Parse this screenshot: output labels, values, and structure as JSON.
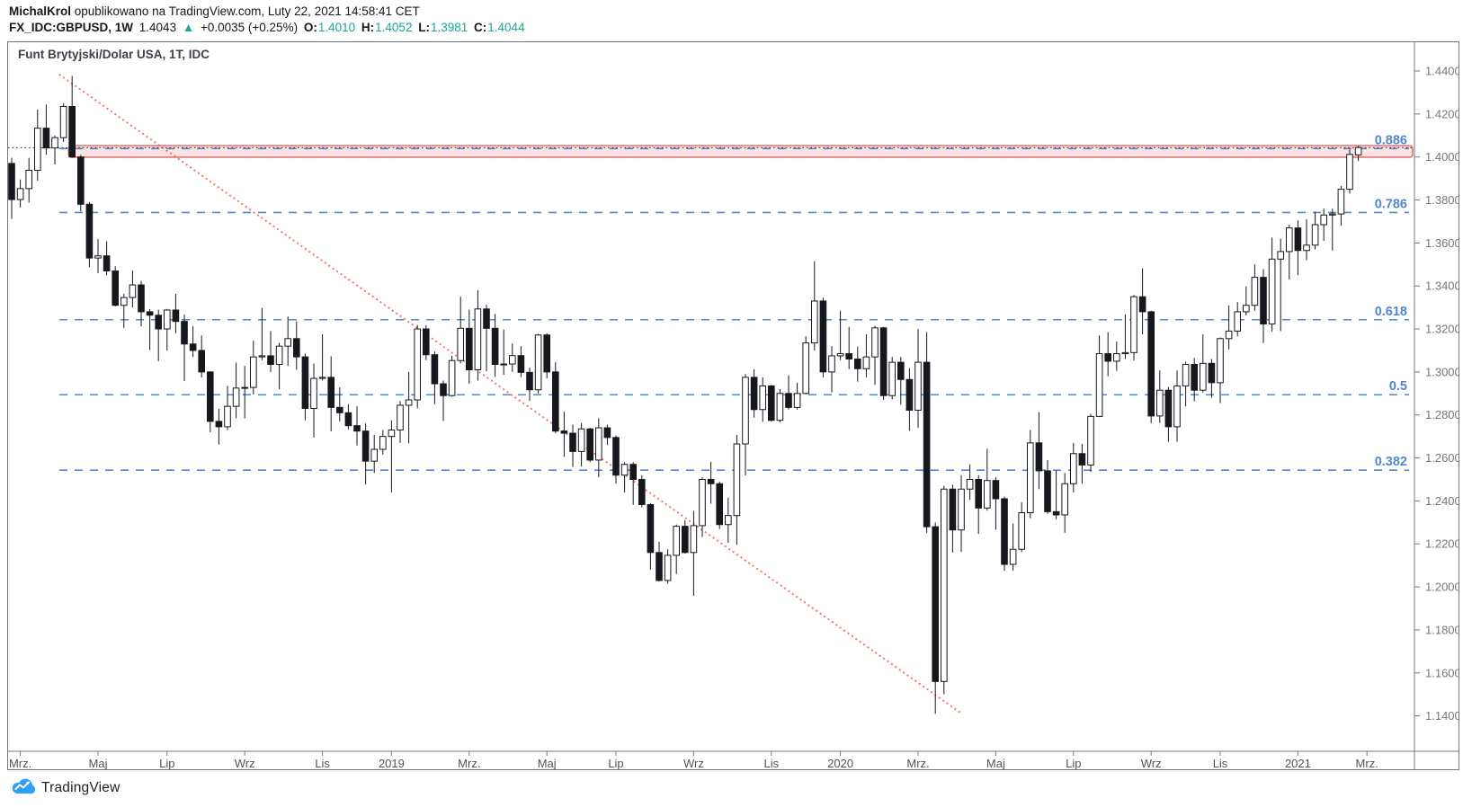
{
  "header": {
    "author": "MichalKrol",
    "published": " opublikowano na TradingView.com, Luty 22, 2021 14:58:41 CET",
    "symbol": "FX_IDC:GBPUSD, 1W",
    "last_price": "1.4043",
    "arrow": "▲",
    "change": "+0.0035 (+0.25%)",
    "ohlc": {
      "o_label": "O:",
      "o": "1.4010",
      "h_label": "H:",
      "h": "1.4052",
      "l_label": "L:",
      "l": "1.3981",
      "c_label": "C:",
      "c": "1.4044"
    }
  },
  "chart": {
    "title": "Funt Brytyjski/Dolar USA, 1T, IDC"
  },
  "footer": {
    "brand": "TradingView"
  },
  "colors": {
    "accent_teal": "#1ba79b",
    "fib_blue": "#5187d2",
    "band_fill": "rgba(239,83,80,0.16)",
    "band_stroke": "#e57373",
    "trend_red": "#ef5350",
    "current_line": "#22262f",
    "candle_up_fill": "#ffffff",
    "candle_down_fill": "#16181d",
    "candle_stroke": "#16181d",
    "axis_line": "#75787b",
    "price_text": "#74777d",
    "time_text": "#50535a",
    "logo_blue": "#2f9ef5"
  },
  "chart_data": {
    "type": "candlestick",
    "symbol": "FX_IDC:GBPUSD",
    "timeframe": "1W",
    "title": "Funt Brytyjski/Dolar USA, 1T, IDC",
    "y_axis": {
      "top_price": 1.45338,
      "bottom_price": 1.12353
    },
    "y_ticks": [
      1.44,
      1.42,
      1.4,
      1.38,
      1.36,
      1.34,
      1.32,
      1.3,
      1.28,
      1.26,
      1.24,
      1.22,
      1.2,
      1.18,
      1.16,
      1.14
    ],
    "x_ticks": [
      {
        "label": "Mrz.",
        "index": 1
      },
      {
        "label": "Maj",
        "index": 10
      },
      {
        "label": "Lip",
        "index": 18
      },
      {
        "label": "Wrz",
        "index": 27
      },
      {
        "label": "Lis",
        "index": 36
      },
      {
        "label": "2019",
        "index": 44
      },
      {
        "label": "Mrz.",
        "index": 53
      },
      {
        "label": "Maj",
        "index": 62
      },
      {
        "label": "Lip",
        "index": 70
      },
      {
        "label": "Wrz",
        "index": 79
      },
      {
        "label": "Lis",
        "index": 88
      },
      {
        "label": "2020",
        "index": 96
      },
      {
        "label": "Mrz.",
        "index": 105
      },
      {
        "label": "Maj",
        "index": 114
      },
      {
        "label": "Lip",
        "index": 123
      },
      {
        "label": "Wrz",
        "index": 132
      },
      {
        "label": "Lis",
        "index": 140
      },
      {
        "label": "2021",
        "index": 149
      },
      {
        "label": "Mrz.",
        "index": 157
      }
    ],
    "fib_levels": [
      {
        "label": "0.886",
        "price": 1.4039
      },
      {
        "label": "0.786",
        "price": 1.3742
      },
      {
        "label": "0.618",
        "price": 1.3243
      },
      {
        "label": "0.5",
        "price": 1.2894
      },
      {
        "label": "0.382",
        "price": 1.2543
      }
    ],
    "resistance_band": {
      "top": 1.4053,
      "bottom": 1.3999,
      "start_index": 6.6
    },
    "trendline": {
      "from": {
        "index": 5.5,
        "price": 1.4384
      },
      "to": {
        "index": 110,
        "price": 1.1412
      }
    },
    "current_price": 1.4043,
    "candles": [
      [
        1.397,
        1.3996,
        1.3712,
        1.3802
      ],
      [
        1.3802,
        1.3895,
        1.3765,
        1.3853
      ],
      [
        1.3853,
        1.3996,
        1.3788,
        1.3938
      ],
      [
        1.3938,
        1.422,
        1.389,
        1.4134
      ],
      [
        1.4134,
        1.4244,
        1.401,
        1.4042
      ],
      [
        1.4042,
        1.41,
        1.3965,
        1.409
      ],
      [
        1.409,
        1.425,
        1.407,
        1.4235
      ],
      [
        1.4235,
        1.4377,
        1.3996,
        1.4
      ],
      [
        1.4,
        1.401,
        1.3747,
        1.378
      ],
      [
        1.378,
        1.379,
        1.3487,
        1.353
      ],
      [
        1.353,
        1.3618,
        1.346,
        1.354
      ],
      [
        1.354,
        1.3608,
        1.345,
        1.347
      ],
      [
        1.347,
        1.3492,
        1.3305,
        1.331
      ],
      [
        1.331,
        1.3363,
        1.3204,
        1.3346
      ],
      [
        1.3346,
        1.3472,
        1.33,
        1.3405
      ],
      [
        1.3405,
        1.3424,
        1.3212,
        1.328
      ],
      [
        1.328,
        1.3292,
        1.3102,
        1.3264
      ],
      [
        1.3264,
        1.329,
        1.305,
        1.32
      ],
      [
        1.32,
        1.3293,
        1.31,
        1.3288
      ],
      [
        1.3288,
        1.3363,
        1.318,
        1.3235
      ],
      [
        1.3235,
        1.3267,
        1.2957,
        1.313
      ],
      [
        1.313,
        1.3213,
        1.307,
        1.31
      ],
      [
        1.31,
        1.317,
        1.2975,
        1.3
      ],
      [
        1.3,
        1.3003,
        1.272,
        1.277
      ],
      [
        1.277,
        1.2828,
        1.2662,
        1.2745
      ],
      [
        1.2745,
        1.2935,
        1.273,
        1.284
      ],
      [
        1.284,
        1.3043,
        1.2785,
        1.2925
      ],
      [
        1.2925,
        1.3028,
        1.2784,
        1.2928
      ],
      [
        1.2928,
        1.3145,
        1.2895,
        1.307
      ],
      [
        1.307,
        1.3298,
        1.3055,
        1.3075
      ],
      [
        1.3075,
        1.319,
        1.3,
        1.3035
      ],
      [
        1.3035,
        1.3135,
        1.292,
        1.312
      ],
      [
        1.312,
        1.3258,
        1.3028,
        1.3155
      ],
      [
        1.3155,
        1.3235,
        1.301,
        1.307
      ],
      [
        1.307,
        1.3085,
        1.2775,
        1.283
      ],
      [
        1.283,
        1.3038,
        1.2695,
        1.297
      ],
      [
        1.297,
        1.3175,
        1.296,
        1.2975
      ],
      [
        1.2975,
        1.3073,
        1.2723,
        1.2835
      ],
      [
        1.2835,
        1.2928,
        1.277,
        1.281
      ],
      [
        1.281,
        1.285,
        1.2733,
        1.275
      ],
      [
        1.275,
        1.284,
        1.2658,
        1.2725
      ],
      [
        1.2725,
        1.276,
        1.2477,
        1.2585
      ],
      [
        1.2585,
        1.2707,
        1.253,
        1.264
      ],
      [
        1.264,
        1.273,
        1.2615,
        1.27
      ],
      [
        1.27,
        1.2775,
        1.244,
        1.273
      ],
      [
        1.273,
        1.2865,
        1.267,
        1.2845
      ],
      [
        1.2845,
        1.3,
        1.2668,
        1.287
      ],
      [
        1.287,
        1.3218,
        1.283,
        1.32
      ],
      [
        1.32,
        1.3217,
        1.3055,
        1.308
      ],
      [
        1.308,
        1.3095,
        1.285,
        1.2945
      ],
      [
        1.2945,
        1.296,
        1.2772,
        1.289
      ],
      [
        1.289,
        1.3075,
        1.2885,
        1.3053
      ],
      [
        1.3053,
        1.335,
        1.304,
        1.3203
      ],
      [
        1.3203,
        1.329,
        1.2945,
        1.301
      ],
      [
        1.301,
        1.338,
        1.296,
        1.3293
      ],
      [
        1.3293,
        1.3312,
        1.3003,
        1.3203
      ],
      [
        1.3203,
        1.327,
        1.2977,
        1.3035
      ],
      [
        1.3035,
        1.3197,
        1.2987,
        1.3037
      ],
      [
        1.3037,
        1.3132,
        1.3,
        1.3076
      ],
      [
        1.3076,
        1.312,
        1.2976,
        1.2998
      ],
      [
        1.2998,
        1.302,
        1.2866,
        1.2917
      ],
      [
        1.2917,
        1.3177,
        1.29,
        1.3172
      ],
      [
        1.3172,
        1.318,
        1.297,
        1.3
      ],
      [
        1.3,
        1.3045,
        1.2715,
        1.2725
      ],
      [
        1.2725,
        1.2815,
        1.2605,
        1.2715
      ],
      [
        1.2715,
        1.2755,
        1.2558,
        1.263
      ],
      [
        1.263,
        1.2763,
        1.256,
        1.2735
      ],
      [
        1.2735,
        1.274,
        1.258,
        1.259
      ],
      [
        1.259,
        1.2785,
        1.251,
        1.274
      ],
      [
        1.274,
        1.2755,
        1.266,
        1.2695
      ],
      [
        1.2695,
        1.2705,
        1.248,
        1.252
      ],
      [
        1.252,
        1.258,
        1.244,
        1.257
      ],
      [
        1.257,
        1.258,
        1.2382,
        1.25
      ],
      [
        1.25,
        1.252,
        1.237,
        1.2383
      ],
      [
        1.2383,
        1.239,
        1.208,
        1.216
      ],
      [
        1.216,
        1.221,
        1.2025,
        1.203
      ],
      [
        1.203,
        1.2175,
        1.2015,
        1.2147
      ],
      [
        1.2147,
        1.229,
        1.206,
        1.2282
      ],
      [
        1.2282,
        1.231,
        1.2155,
        1.216
      ],
      [
        1.216,
        1.2354,
        1.1958,
        1.2285
      ],
      [
        1.2285,
        1.251,
        1.2232,
        1.25
      ],
      [
        1.25,
        1.2582,
        1.2387,
        1.248
      ],
      [
        1.248,
        1.249,
        1.227,
        1.229
      ],
      [
        1.229,
        1.2415,
        1.2205,
        1.2332
      ],
      [
        1.2332,
        1.2707,
        1.2196,
        1.2665
      ],
      [
        1.2665,
        1.299,
        1.2518,
        1.2975
      ],
      [
        1.2975,
        1.3012,
        1.2788,
        1.2825
      ],
      [
        1.2825,
        1.2975,
        1.2768,
        1.2935
      ],
      [
        1.2935,
        1.294,
        1.277,
        1.2775
      ],
      [
        1.2775,
        1.292,
        1.2765,
        1.29
      ],
      [
        1.29,
        1.2985,
        1.2825,
        1.2835
      ],
      [
        1.2835,
        1.295,
        1.2825,
        1.29
      ],
      [
        1.29,
        1.3166,
        1.2895,
        1.3135
      ],
      [
        1.3135,
        1.3515,
        1.31,
        1.333
      ],
      [
        1.333,
        1.3345,
        1.2975,
        1.3
      ],
      [
        1.3,
        1.312,
        1.2905,
        1.3075
      ],
      [
        1.3075,
        1.3285,
        1.3055,
        1.3085
      ],
      [
        1.3085,
        1.321,
        1.3013,
        1.306
      ],
      [
        1.306,
        1.3118,
        1.2955,
        1.3015
      ],
      [
        1.3015,
        1.3175,
        1.2975,
        1.307
      ],
      [
        1.307,
        1.3215,
        1.294,
        1.3205
      ],
      [
        1.3205,
        1.321,
        1.287,
        1.289
      ],
      [
        1.289,
        1.307,
        1.2872,
        1.3045
      ],
      [
        1.3045,
        1.307,
        1.2848,
        1.2965
      ],
      [
        1.2965,
        1.3018,
        1.2726,
        1.2822
      ],
      [
        1.2822,
        1.32,
        1.274,
        1.3045
      ],
      [
        1.3045,
        1.3185,
        1.225,
        1.228
      ],
      [
        1.228,
        1.23,
        1.141,
        1.156
      ],
      [
        1.156,
        1.247,
        1.15,
        1.2455
      ],
      [
        1.2455,
        1.2475,
        1.216,
        1.2265
      ],
      [
        1.2265,
        1.252,
        1.2163,
        1.2455
      ],
      [
        1.2455,
        1.257,
        1.2405,
        1.25
      ],
      [
        1.25,
        1.252,
        1.2247,
        1.2367
      ],
      [
        1.2367,
        1.2643,
        1.2355,
        1.2495
      ],
      [
        1.2495,
        1.251,
        1.2266,
        1.241
      ],
      [
        1.241,
        1.242,
        1.2075,
        1.2105
      ],
      [
        1.2105,
        1.2295,
        1.2076,
        1.2175
      ],
      [
        1.2175,
        1.2394,
        1.2162,
        1.2345
      ],
      [
        1.2345,
        1.273,
        1.232,
        1.267
      ],
      [
        1.267,
        1.2813,
        1.2455,
        1.254
      ],
      [
        1.254,
        1.259,
        1.234,
        1.235
      ],
      [
        1.235,
        1.2542,
        1.2315,
        1.2335
      ],
      [
        1.2335,
        1.253,
        1.2252,
        1.248
      ],
      [
        1.248,
        1.267,
        1.244,
        1.262
      ],
      [
        1.262,
        1.2665,
        1.248,
        1.2567
      ],
      [
        1.2567,
        1.2805,
        1.2535,
        1.2793
      ],
      [
        1.2793,
        1.317,
        1.279,
        1.3085
      ],
      [
        1.3085,
        1.3185,
        1.298,
        1.305
      ],
      [
        1.305,
        1.3142,
        1.3005,
        1.3085
      ],
      [
        1.3085,
        1.3268,
        1.306,
        1.309
      ],
      [
        1.309,
        1.3358,
        1.3053,
        1.335
      ],
      [
        1.335,
        1.3482,
        1.3175,
        1.328
      ],
      [
        1.328,
        1.3285,
        1.2762,
        1.2795
      ],
      [
        1.2795,
        1.3007,
        1.2763,
        1.2915
      ],
      [
        1.2915,
        1.293,
        1.2675,
        1.2745
      ],
      [
        1.2745,
        1.3007,
        1.2675,
        1.2935
      ],
      [
        1.2935,
        1.3048,
        1.284,
        1.3035
      ],
      [
        1.3035,
        1.3065,
        1.2863,
        1.2915
      ],
      [
        1.2915,
        1.3175,
        1.2905,
        1.304
      ],
      [
        1.304,
        1.306,
        1.288,
        1.295
      ],
      [
        1.295,
        1.316,
        1.2855,
        1.3155
      ],
      [
        1.3155,
        1.331,
        1.3105,
        1.319
      ],
      [
        1.319,
        1.3325,
        1.3165,
        1.328
      ],
      [
        1.328,
        1.3398,
        1.3263,
        1.331
      ],
      [
        1.331,
        1.35,
        1.3285,
        1.344
      ],
      [
        1.344,
        1.3478,
        1.3135,
        1.3223
      ],
      [
        1.3223,
        1.3625,
        1.3188,
        1.3525
      ],
      [
        1.3525,
        1.362,
        1.319,
        1.356
      ],
      [
        1.356,
        1.3685,
        1.343,
        1.367
      ],
      [
        1.367,
        1.3705,
        1.345,
        1.3565
      ],
      [
        1.3565,
        1.371,
        1.352,
        1.359
      ],
      [
        1.359,
        1.3745,
        1.357,
        1.3685
      ],
      [
        1.3685,
        1.376,
        1.361,
        1.373
      ],
      [
        1.373,
        1.376,
        1.3565,
        1.3735
      ],
      [
        1.3735,
        1.3865,
        1.368,
        1.385
      ],
      [
        1.385,
        1.4035,
        1.383,
        1.4012
      ],
      [
        1.401,
        1.4052,
        1.3981,
        1.4044
      ]
    ]
  }
}
